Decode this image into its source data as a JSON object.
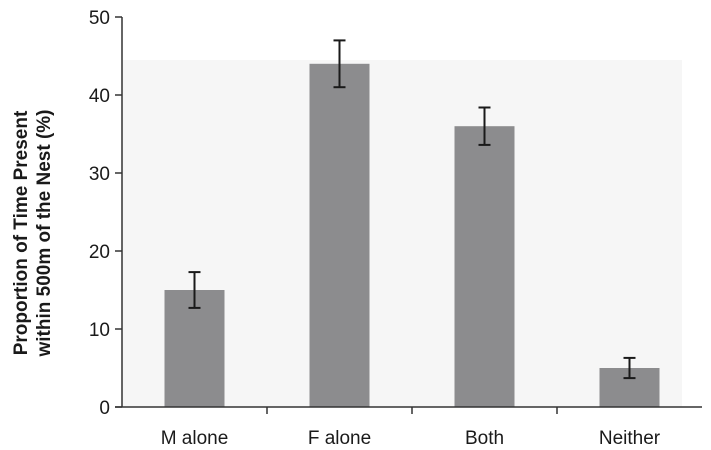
{
  "chart_data": {
    "type": "bar",
    "categories": [
      "M alone",
      "F alone",
      "Both",
      "Neither"
    ],
    "values": [
      15,
      44,
      36,
      5
    ],
    "error_low": [
      12.7,
      41,
      33.6,
      3.7
    ],
    "error_high": [
      17.3,
      47,
      38.4,
      6.3
    ],
    "title": "",
    "xlabel": "",
    "ylabel": [
      "Proportion of Time Present",
      "within 500m of the Nest (%)"
    ],
    "ylim": [
      0,
      50
    ],
    "yticks": [
      "0",
      "10",
      "20",
      "30",
      "40",
      "50"
    ],
    "grid": false,
    "colors": {
      "bar": "#8c8c8e",
      "axis": "#333333",
      "error_bar": "#1a1a1a",
      "plot_background": "#f6f6f6"
    }
  }
}
